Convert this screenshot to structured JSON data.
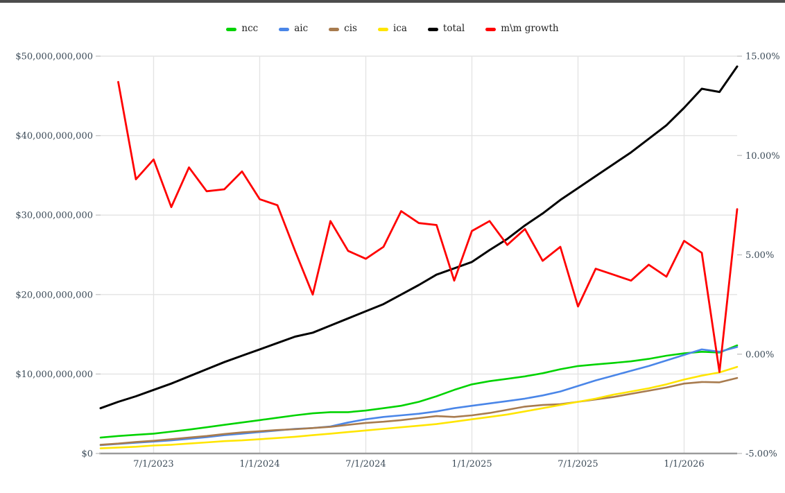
{
  "page": {
    "background": "#ffffff",
    "top_border_color": "#4d4d4d"
  },
  "chart_data": {
    "type": "line",
    "title": "",
    "grid": true,
    "legend_position": "top",
    "x": [
      "4/1/2023",
      "5/1/2023",
      "6/1/2023",
      "7/1/2023",
      "8/1/2023",
      "9/1/2023",
      "10/1/2023",
      "11/1/2023",
      "12/1/2023",
      "1/1/2024",
      "2/1/2024",
      "3/1/2024",
      "4/1/2024",
      "5/1/2024",
      "6/1/2024",
      "7/1/2024",
      "8/1/2024",
      "9/1/2024",
      "10/1/2024",
      "11/1/2024",
      "12/1/2024",
      "1/1/2025",
      "2/1/2025",
      "3/1/2025",
      "4/1/2025",
      "5/1/2025",
      "6/1/2025",
      "7/1/2025",
      "8/1/2025",
      "9/1/2025",
      "10/1/2025",
      "11/1/2025",
      "12/1/2025",
      "1/1/2026",
      "2/1/2026",
      "3/1/2026",
      "4/1/2026"
    ],
    "x_axis": {
      "tick_labels": [
        "7/1/2023",
        "1/1/2024",
        "7/1/2024",
        "1/1/2025",
        "7/1/2025",
        "1/1/2026"
      ],
      "tick_indices": [
        3,
        9,
        15,
        21,
        27,
        33
      ]
    },
    "left_axis": {
      "min": 0,
      "max": 50000000000.0,
      "tick_values": [
        0,
        10000000000.0,
        20000000000.0,
        30000000000.0,
        40000000000.0,
        50000000000.0
      ],
      "tick_labels": [
        "$0",
        "$10,000,000,000",
        "$20,000,000,000",
        "$30,000,000,000",
        "$40,000,000,000",
        "$50,000,000,000"
      ]
    },
    "right_axis": {
      "min": -5,
      "max": 15,
      "tick_values": [
        -5,
        0,
        5,
        10,
        15
      ],
      "tick_labels": [
        "-5.00%",
        "0.00%",
        "5.00%",
        "10.00%",
        "15.00%"
      ]
    },
    "series": [
      {
        "name": "ncc",
        "axis": "left",
        "color": "#00d300",
        "width": 2.6,
        "values": [
          2000000000.0,
          2200000000.0,
          2350000000.0,
          2500000000.0,
          2750000000.0,
          3000000000.0,
          3300000000.0,
          3600000000.0,
          3900000000.0,
          4200000000.0,
          4500000000.0,
          4800000000.0,
          5050000000.0,
          5200000000.0,
          5200000000.0,
          5400000000.0,
          5700000000.0,
          6000000000.0,
          6500000000.0,
          7200000000.0,
          8000000000.0,
          8700000000.0,
          9100000000.0,
          9400000000.0,
          9700000000.0,
          10100000000.0,
          10600000000.0,
          11000000000.0,
          11200000000.0,
          11400000000.0,
          11600000000.0,
          11900000000.0,
          12300000000.0,
          12600000000.0,
          12800000000.0,
          12700000000.0,
          13600000000.0
        ]
      },
      {
        "name": "aic",
        "axis": "left",
        "color": "#4a86e8",
        "width": 2.6,
        "values": [
          1050000000.0,
          1200000000.0,
          1350000000.0,
          1500000000.0,
          1650000000.0,
          1850000000.0,
          2050000000.0,
          2300000000.0,
          2500000000.0,
          2700000000.0,
          2900000000.0,
          3100000000.0,
          3200000000.0,
          3400000000.0,
          3900000000.0,
          4300000000.0,
          4600000000.0,
          4800000000.0,
          5000000000.0,
          5300000000.0,
          5700000000.0,
          6000000000.0,
          6300000000.0,
          6600000000.0,
          6900000000.0,
          7300000000.0,
          7800000000.0,
          8500000000.0,
          9200000000.0,
          9800000000.0,
          10400000000.0,
          11000000000.0,
          11700000000.0,
          12400000000.0,
          13100000000.0,
          12800000000.0,
          13400000000.0
        ]
      },
      {
        "name": "cis",
        "axis": "left",
        "color": "#a87b4e",
        "width": 2.6,
        "values": [
          1100000000.0,
          1250000000.0,
          1450000000.0,
          1600000000.0,
          1800000000.0,
          2000000000.0,
          2200000000.0,
          2450000000.0,
          2650000000.0,
          2800000000.0,
          2950000000.0,
          3050000000.0,
          3200000000.0,
          3350000000.0,
          3600000000.0,
          3850000000.0,
          4000000000.0,
          4200000000.0,
          4450000000.0,
          4700000000.0,
          4600000000.0,
          4800000000.0,
          5100000000.0,
          5500000000.0,
          5900000000.0,
          6100000000.0,
          6200000000.0,
          6500000000.0,
          6800000000.0,
          7100000000.0,
          7500000000.0,
          7900000000.0,
          8300000000.0,
          8800000000.0,
          9000000000.0,
          8950000000.0,
          9500000000.0
        ]
      },
      {
        "name": "ica",
        "axis": "left",
        "color": "#ffe500",
        "width": 2.6,
        "values": [
          650000000.0,
          750000000.0,
          850000000.0,
          1000000000.0,
          1100000000.0,
          1250000000.0,
          1400000000.0,
          1550000000.0,
          1650000000.0,
          1800000000.0,
          1950000000.0,
          2100000000.0,
          2300000000.0,
          2500000000.0,
          2700000000.0,
          2900000000.0,
          3100000000.0,
          3300000000.0,
          3500000000.0,
          3700000000.0,
          4000000000.0,
          4300000000.0,
          4600000000.0,
          4900000000.0,
          5300000000.0,
          5700000000.0,
          6100000000.0,
          6500000000.0,
          6900000000.0,
          7400000000.0,
          7800000000.0,
          8200000000.0,
          8700000000.0,
          9300000000.0,
          9800000000.0,
          10200000000.0,
          10900000000.0
        ]
      },
      {
        "name": "total",
        "axis": "left",
        "color": "#000000",
        "width": 3,
        "values": [
          5700000000.0,
          6500000000.0,
          7200000000.0,
          8000000000.0,
          8800000000.0,
          9700000000.0,
          10600000000.0,
          11500000000.0,
          12300000000.0,
          13100000000.0,
          13900000000.0,
          14700000000.0,
          15200000000.0,
          16100000000.0,
          17000000000.0,
          17900000000.0,
          18800000000.0,
          20000000000.0,
          21200000000.0,
          22500000000.0,
          23300000000.0,
          24100000000.0,
          25600000000.0,
          27000000000.0,
          28700000000.0,
          30200000000.0,
          31900000000.0,
          33400000000.0,
          34900000000.0,
          36400000000.0,
          37900000000.0,
          39600000000.0,
          41300000000.0,
          43500000000.0,
          45900000000.0,
          45500000000.0,
          48700000000.0
        ]
      },
      {
        "name": "m\\m growth",
        "axis": "right",
        "color": "#ff0000",
        "width": 2.8,
        "values": [
          null,
          13.7,
          8.8,
          9.8,
          7.4,
          9.4,
          8.2,
          8.3,
          9.2,
          7.8,
          7.5,
          5.2,
          3.0,
          6.7,
          5.2,
          4.8,
          5.4,
          7.2,
          6.6,
          6.5,
          3.7,
          6.2,
          6.7,
          5.5,
          6.3,
          4.7,
          5.4,
          2.4,
          4.3,
          4.0,
          3.7,
          4.5,
          3.9,
          5.7,
          5.1,
          -0.9,
          7.3
        ]
      }
    ],
    "style": {
      "grid_color": "#e3e3e3",
      "axis_line_color": "#9b9b9b",
      "tick_color": "#c4c4c4",
      "label_color": "#3b4a57"
    }
  }
}
